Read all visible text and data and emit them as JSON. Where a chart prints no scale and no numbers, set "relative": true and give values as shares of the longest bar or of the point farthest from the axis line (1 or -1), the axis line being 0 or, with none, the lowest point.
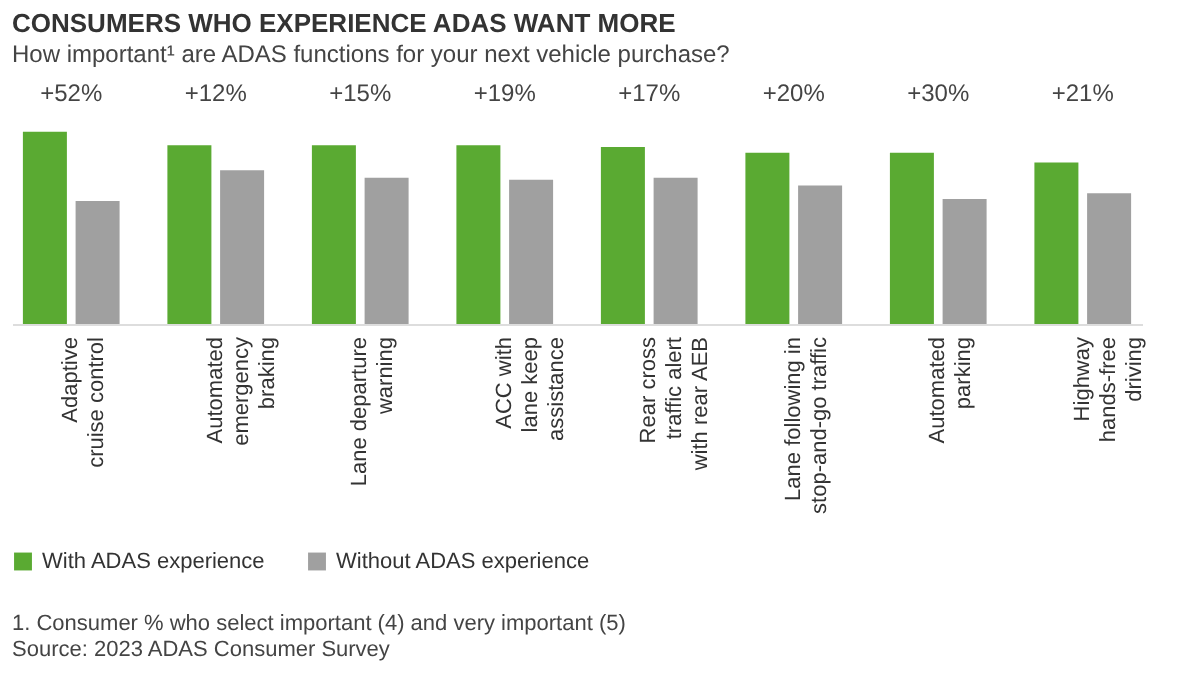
{
  "chart_data": {
    "type": "bar",
    "title": "CONSUMERS WHO EXPERIENCE ADAS WANT MORE",
    "subtitle": "How important¹ are ADAS functions for your next vehicle purchase?",
    "relative": true,
    "categories": [
      "Adaptive\ncruise control",
      "Automated\nemergency\nbraking",
      "Lane departure\nwarning",
      "ACC with\nlane keep\nassistance",
      "Rear cross\ntraffic alert\nwith rear AEB",
      "Lane following in\nstop-and-go traffic",
      "Automated\nparking",
      "Highway\nhands-free\ndriving"
    ],
    "series": [
      {
        "name": "With ADAS experience",
        "color": "#5aaa32",
        "values": [
          1,
          0.93,
          0.93,
          0.93,
          0.92,
          0.89,
          0.89,
          0.84
        ]
      },
      {
        "name": "Without ADAS experience",
        "color": "#a0a0a0",
        "values": [
          0.64,
          0.8,
          0.76,
          0.75,
          0.76,
          0.72,
          0.65,
          0.68
        ]
      }
    ],
    "annotations": [
      "+52%",
      "+12%",
      "+15%",
      "+19%",
      "+17%",
      "+20%",
      "+30%",
      "+21%",
      "1. Consumer % who select important (4) and very important (5)",
      "Source: 2023 ADAS Consumer Survey"
    ],
    "legend": "bottom",
    "grid": false
  }
}
